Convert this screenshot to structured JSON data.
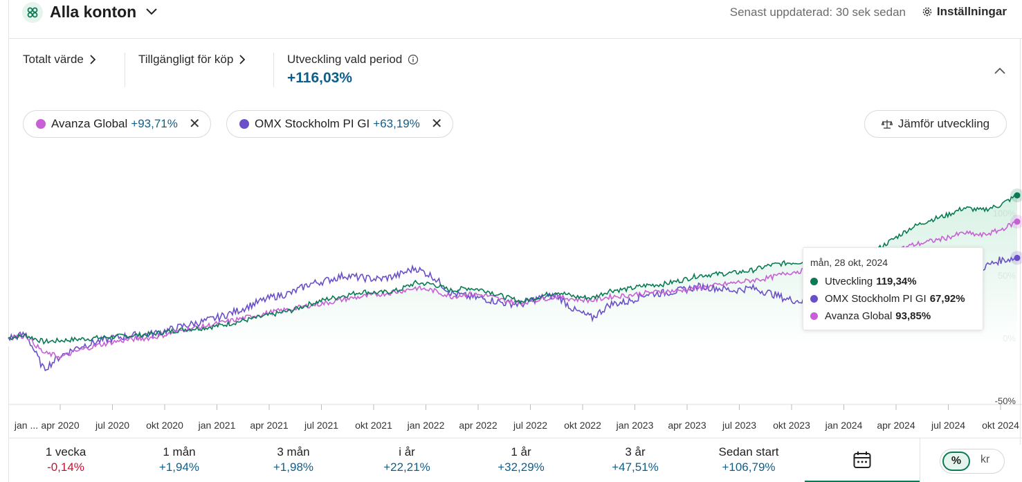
{
  "header": {
    "account_title": "Alla konton",
    "updated": "Senast uppdaterad: 30 sek sedan",
    "settings": "Inställningar"
  },
  "stats": {
    "total_value_label": "Totalt värde",
    "available_label": "Tillgängligt för köp",
    "development_label": "Utveckling vald period",
    "development_value": "+116,03%"
  },
  "chips": [
    {
      "name": "Avanza Global",
      "value": "+93,71%",
      "color": "#c85fd6"
    },
    {
      "name": "OMX Stockholm PI GI",
      "value": "+63,19%",
      "color": "#6a4fc9"
    }
  ],
  "compare_button": "Jämför utveckling",
  "tooltip": {
    "date": "mån, 28 okt, 2024",
    "rows": [
      {
        "name": "Utveckling",
        "value": "119,34%",
        "color": "#0a7a55"
      },
      {
        "name": "OMX Stockholm PI GI",
        "value": "67,92%",
        "color": "#6a4fc9"
      },
      {
        "name": "Avanza Global",
        "value": "93,85%",
        "color": "#c85fd6"
      }
    ]
  },
  "periods": [
    {
      "label": "1 vecka",
      "value": "-0,14%",
      "negative": true
    },
    {
      "label": "1 mån",
      "value": "+1,94%",
      "negative": false
    },
    {
      "label": "3 mån",
      "value": "+1,98%",
      "negative": false
    },
    {
      "label": "i år",
      "value": "+22,21%",
      "negative": false
    },
    {
      "label": "1 år",
      "value": "+32,29%",
      "negative": false
    },
    {
      "label": "3 år",
      "value": "+47,51%",
      "negative": false
    },
    {
      "label": "Sedan start",
      "value": "+106,79%",
      "negative": false
    }
  ],
  "unit_toggle": {
    "selected": "%",
    "other": "kr"
  },
  "chart_data": {
    "type": "line",
    "x_labels": [
      "jan ...",
      "apr 2020",
      "jul 2020",
      "okt 2020",
      "jan 2021",
      "apr 2021",
      "jul 2021",
      "okt 2021",
      "jan 2022",
      "apr 2022",
      "jul 2022",
      "okt 2022",
      "jan 2023",
      "apr 2023",
      "jul 2023",
      "okt 2023",
      "jan 2024",
      "apr 2024",
      "jul 2024",
      "okt 2024"
    ],
    "y_ticks": [
      "100%",
      "50%",
      "0%",
      "-50%"
    ],
    "y_tick_values": [
      100,
      50,
      0,
      -50
    ],
    "ylim": [
      -50,
      120
    ],
    "x": [
      "2020-01",
      "2020-02",
      "2020-03",
      "2020-04",
      "2020-05",
      "2020-06",
      "2020-07",
      "2020-08",
      "2020-09",
      "2020-10",
      "2020-11",
      "2020-12",
      "2021-01",
      "2021-02",
      "2021-03",
      "2021-04",
      "2021-05",
      "2021-06",
      "2021-07",
      "2021-08",
      "2021-09",
      "2021-10",
      "2021-11",
      "2021-12",
      "2022-01",
      "2022-02",
      "2022-03",
      "2022-04",
      "2022-05",
      "2022-06",
      "2022-07",
      "2022-08",
      "2022-09",
      "2022-10",
      "2022-11",
      "2022-12",
      "2023-01",
      "2023-02",
      "2023-03",
      "2023-04",
      "2023-05",
      "2023-06",
      "2023-07",
      "2023-08",
      "2023-09",
      "2023-10",
      "2023-11",
      "2023-12",
      "2024-01",
      "2024-02",
      "2024-03",
      "2024-04",
      "2024-05",
      "2024-06",
      "2024-07",
      "2024-08",
      "2024-09",
      "2024-10"
    ],
    "series": [
      {
        "name": "Utveckling",
        "color": "#0a7a55",
        "fill": true,
        "values": [
          0,
          2,
          -3,
          -2,
          -1,
          0,
          1,
          2,
          3,
          5,
          7,
          8,
          10,
          13,
          16,
          19,
          22,
          27,
          31,
          34,
          37,
          36,
          38,
          44,
          43,
          38,
          40,
          38,
          33,
          29,
          33,
          37,
          33,
          32,
          38,
          39,
          42,
          43,
          46,
          50,
          51,
          52,
          54,
          58,
          60,
          61,
          57,
          59,
          63,
          70,
          79,
          88,
          94,
          98,
          104,
          102,
          106,
          114
        ]
      },
      {
        "name": "OMX Stockholm PI GI",
        "color": "#6a4fc9",
        "fill": false,
        "values": [
          0,
          3,
          -25,
          -14,
          -7,
          -3,
          0,
          2,
          3,
          6,
          10,
          13,
          17,
          22,
          28,
          33,
          36,
          43,
          46,
          50,
          48,
          47,
          50,
          56,
          49,
          36,
          33,
          31,
          28,
          27,
          32,
          34,
          22,
          16,
          27,
          29,
          35,
          36,
          38,
          41,
          40,
          38,
          40,
          36,
          31,
          29,
          27,
          30,
          35,
          42,
          47,
          50,
          52,
          54,
          60,
          56,
          62,
          64
        ]
      },
      {
        "name": "Avanza Global",
        "color": "#c85fd6",
        "fill": false,
        "values": [
          0,
          2,
          -12,
          -15,
          -10,
          -6,
          -3,
          -1,
          0,
          3,
          7,
          9,
          12,
          15,
          18,
          21,
          23,
          26,
          28,
          31,
          33,
          35,
          37,
          40,
          38,
          33,
          35,
          34,
          30,
          28,
          31,
          33,
          31,
          30,
          33,
          34,
          36,
          37,
          38,
          40,
          42,
          44,
          46,
          48,
          52,
          54,
          53,
          56,
          60,
          65,
          69,
          74,
          77,
          80,
          84,
          82,
          86,
          93
        ]
      }
    ]
  }
}
